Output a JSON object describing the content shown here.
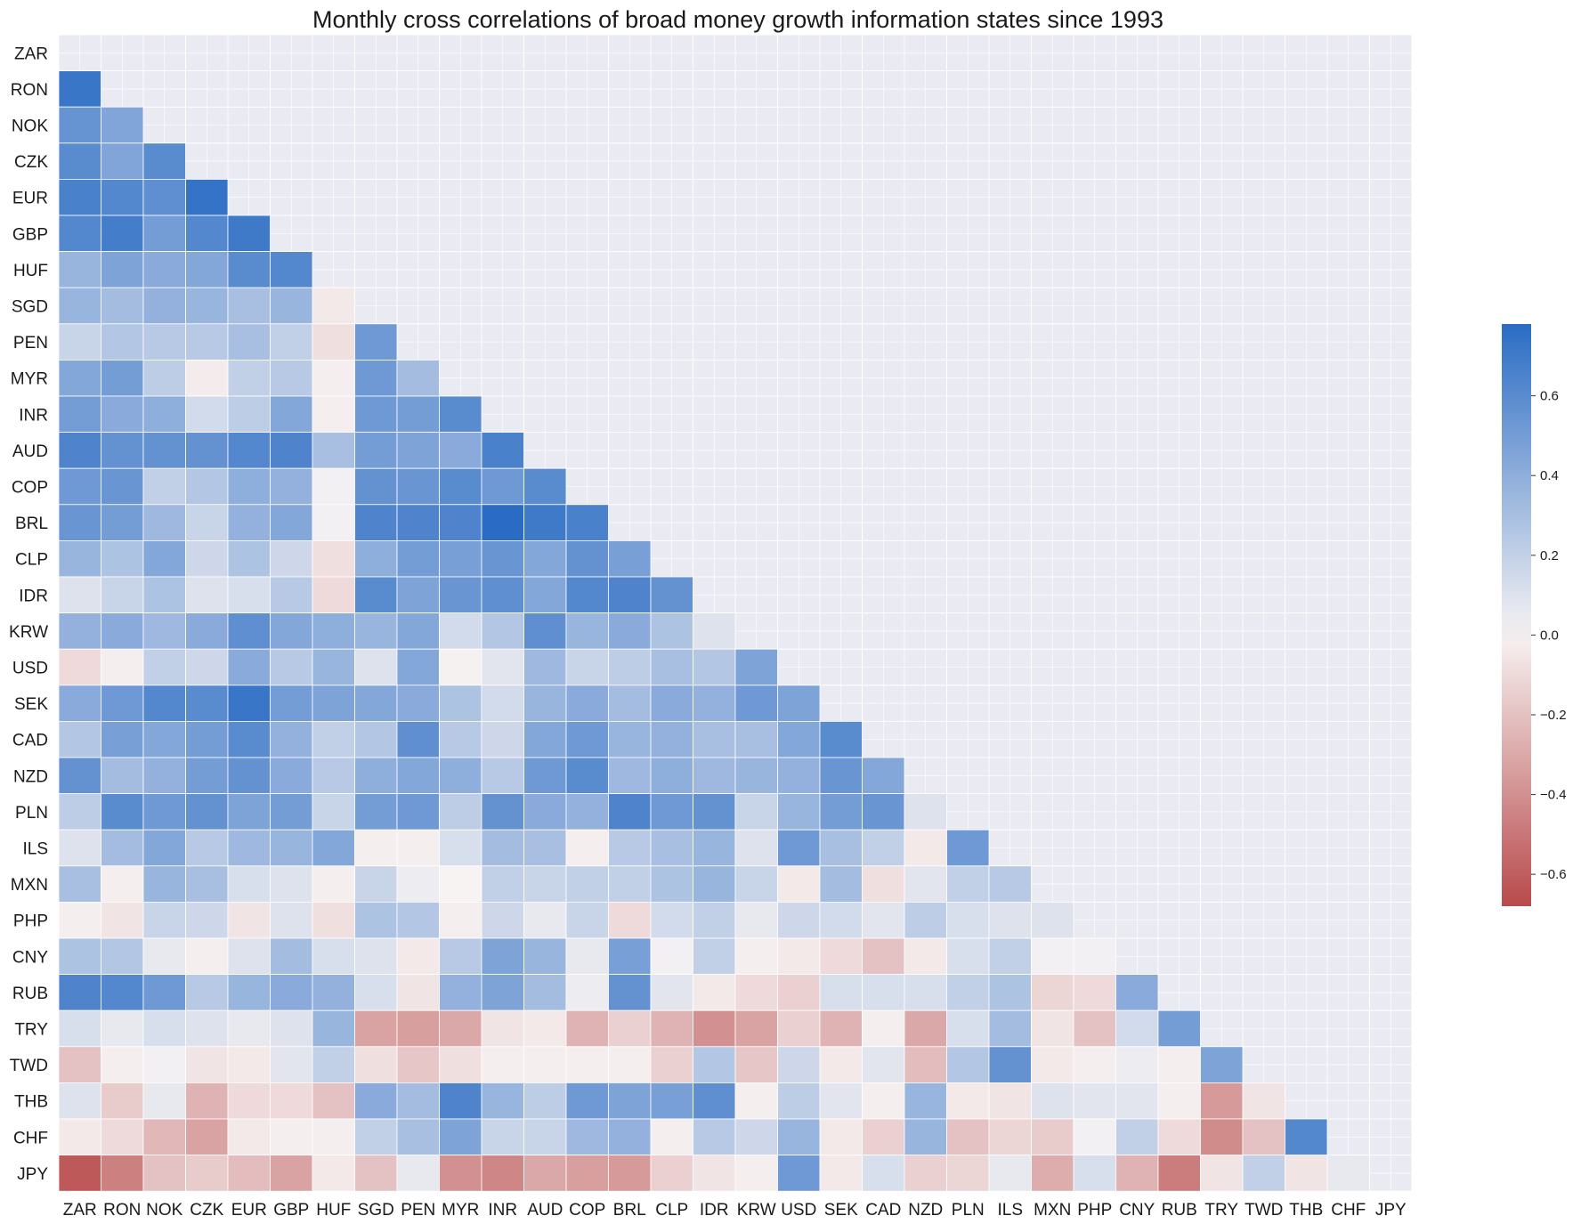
{
  "chart_data": {
    "type": "heatmap",
    "title": "Monthly cross correlations of broad money growth information states since 1993",
    "labels": [
      "ZAR",
      "RON",
      "NOK",
      "CZK",
      "EUR",
      "GBP",
      "HUF",
      "SGD",
      "PEN",
      "MYR",
      "INR",
      "AUD",
      "COP",
      "BRL",
      "CLP",
      "IDR",
      "KRW",
      "USD",
      "SEK",
      "CAD",
      "NZD",
      "PLN",
      "ILS",
      "MXN",
      "PHP",
      "CNY",
      "RUB",
      "TRY",
      "TWD",
      "THB",
      "CHF",
      "JPY"
    ],
    "mask": "upper triangle incl. diagonal",
    "matrix": [
      [],
      [
        0.72
      ],
      [
        0.55,
        0.45
      ],
      [
        0.6,
        0.45,
        0.6
      ],
      [
        0.66,
        0.62,
        0.58,
        0.74
      ],
      [
        0.62,
        0.68,
        0.5,
        0.62,
        0.7
      ],
      [
        0.36,
        0.46,
        0.42,
        0.44,
        0.6,
        0.62
      ],
      [
        0.36,
        0.32,
        0.38,
        0.36,
        0.3,
        0.36,
        -0.04
      ],
      [
        0.18,
        0.26,
        0.24,
        0.24,
        0.3,
        0.2,
        -0.08,
        0.52
      ],
      [
        0.44,
        0.5,
        0.22,
        -0.03,
        0.2,
        0.24,
        -0.02,
        0.52,
        0.32
      ],
      [
        0.5,
        0.42,
        0.4,
        0.14,
        0.22,
        0.44,
        -0.02,
        0.52,
        0.5,
        0.6
      ],
      [
        0.64,
        0.56,
        0.56,
        0.56,
        0.62,
        0.64,
        0.3,
        0.5,
        0.46,
        0.42,
        0.66
      ],
      [
        0.52,
        0.54,
        0.2,
        0.26,
        0.4,
        0.38,
        0.02,
        0.56,
        0.54,
        0.6,
        0.52,
        0.6
      ],
      [
        0.54,
        0.5,
        0.34,
        0.18,
        0.38,
        0.44,
        0.02,
        0.64,
        0.64,
        0.64,
        0.78,
        0.7,
        0.66
      ],
      [
        0.36,
        0.28,
        0.44,
        0.16,
        0.28,
        0.16,
        -0.08,
        0.4,
        0.5,
        0.48,
        0.54,
        0.44,
        0.56,
        0.48
      ],
      [
        0.1,
        0.18,
        0.28,
        0.1,
        0.12,
        0.24,
        -0.1,
        0.6,
        0.46,
        0.54,
        0.58,
        0.44,
        0.62,
        0.64,
        0.56
      ],
      [
        0.38,
        0.42,
        0.34,
        0.42,
        0.58,
        0.44,
        0.4,
        0.36,
        0.44,
        0.14,
        0.26,
        0.58,
        0.36,
        0.42,
        0.28,
        0.1
      ],
      [
        -0.1,
        -0.02,
        0.2,
        0.16,
        0.42,
        0.24,
        0.36,
        0.1,
        0.44,
        -0.01,
        0.08,
        0.34,
        0.18,
        0.22,
        0.3,
        0.26,
        0.46
      ],
      [
        0.42,
        0.52,
        0.62,
        0.6,
        0.72,
        0.5,
        0.46,
        0.44,
        0.42,
        0.28,
        0.14,
        0.36,
        0.42,
        0.32,
        0.42,
        0.38,
        0.52,
        0.46
      ],
      [
        0.26,
        0.48,
        0.44,
        0.5,
        0.6,
        0.38,
        0.2,
        0.26,
        0.58,
        0.24,
        0.16,
        0.44,
        0.52,
        0.36,
        0.38,
        0.3,
        0.3,
        0.44,
        0.6
      ],
      [
        0.56,
        0.32,
        0.38,
        0.5,
        0.56,
        0.42,
        0.24,
        0.4,
        0.44,
        0.4,
        0.24,
        0.52,
        0.6,
        0.34,
        0.4,
        0.34,
        0.36,
        0.38,
        0.54,
        0.44
      ],
      [
        0.22,
        0.6,
        0.52,
        0.56,
        0.46,
        0.5,
        0.18,
        0.5,
        0.52,
        0.22,
        0.56,
        0.42,
        0.38,
        0.64,
        0.52,
        0.56,
        0.18,
        0.36,
        0.5,
        0.54,
        0.1
      ],
      [
        0.1,
        0.32,
        0.44,
        0.24,
        0.34,
        0.36,
        0.44,
        -0.02,
        -0.02,
        0.12,
        0.32,
        0.3,
        -0.02,
        0.24,
        0.3,
        0.36,
        0.1,
        0.52,
        0.3,
        0.2,
        -0.04,
        0.52
      ],
      [
        0.3,
        -0.02,
        0.36,
        0.3,
        0.12,
        0.1,
        -0.02,
        0.18,
        0.04,
        0.0,
        0.2,
        0.18,
        0.2,
        0.2,
        0.28,
        0.36,
        0.18,
        -0.04,
        0.32,
        -0.08,
        0.08,
        0.2,
        0.24
      ],
      [
        -0.02,
        -0.06,
        0.18,
        0.16,
        -0.06,
        0.1,
        -0.08,
        0.28,
        0.26,
        -0.02,
        0.16,
        0.06,
        0.18,
        -0.1,
        0.14,
        0.2,
        0.06,
        0.16,
        0.14,
        0.08,
        0.22,
        0.12,
        0.1,
        0.1
      ],
      [
        0.28,
        0.26,
        0.06,
        -0.02,
        0.1,
        0.32,
        0.12,
        0.1,
        -0.04,
        0.24,
        0.46,
        0.36,
        0.06,
        0.48,
        0.02,
        0.2,
        -0.02,
        -0.04,
        -0.1,
        -0.2,
        -0.04,
        0.12,
        0.2,
        0.02,
        0.02
      ],
      [
        0.64,
        0.62,
        0.52,
        0.24,
        0.36,
        0.42,
        0.38,
        0.12,
        -0.06,
        0.38,
        0.46,
        0.32,
        0.04,
        0.56,
        0.08,
        -0.04,
        -0.1,
        -0.14,
        0.12,
        0.12,
        0.12,
        0.2,
        0.28,
        -0.12,
        -0.1,
        0.42
      ],
      [
        0.12,
        0.06,
        0.12,
        0.1,
        0.06,
        0.1,
        0.36,
        -0.32,
        -0.34,
        -0.3,
        -0.06,
        -0.04,
        -0.26,
        -0.14,
        -0.26,
        -0.4,
        -0.32,
        -0.14,
        -0.26,
        -0.02,
        -0.3,
        0.12,
        0.32,
        -0.06,
        -0.2,
        0.14,
        0.5
      ],
      [
        -0.2,
        -0.02,
        0.02,
        -0.06,
        -0.04,
        0.08,
        0.2,
        -0.08,
        -0.18,
        -0.08,
        -0.02,
        -0.02,
        -0.02,
        -0.02,
        -0.14,
        0.26,
        -0.18,
        0.16,
        -0.04,
        0.08,
        -0.22,
        0.26,
        0.56,
        -0.04,
        -0.02,
        0.04,
        -0.02,
        0.46
      ],
      [
        0.1,
        -0.16,
        0.06,
        -0.26,
        -0.1,
        -0.1,
        -0.2,
        0.42,
        0.32,
        0.64,
        0.36,
        0.22,
        0.52,
        0.46,
        0.48,
        0.58,
        -0.02,
        0.22,
        0.08,
        -0.02,
        0.36,
        -0.04,
        -0.06,
        0.1,
        0.08,
        0.08,
        -0.02,
        -0.36,
        -0.06
      ],
      [
        -0.04,
        -0.1,
        -0.24,
        -0.32,
        -0.04,
        -0.02,
        -0.02,
        0.2,
        0.3,
        0.46,
        0.18,
        0.18,
        0.34,
        0.38,
        -0.02,
        0.24,
        0.16,
        0.36,
        -0.04,
        -0.14,
        0.36,
        -0.2,
        -0.12,
        -0.16,
        0.02,
        0.2,
        -0.1,
        -0.42,
        -0.2,
        0.62
      ],
      [
        -0.62,
        -0.46,
        -0.2,
        -0.16,
        -0.22,
        -0.32,
        -0.04,
        -0.2,
        0.06,
        -0.4,
        -0.44,
        -0.3,
        -0.34,
        -0.36,
        -0.14,
        -0.06,
        -0.02,
        0.52,
        -0.04,
        0.12,
        -0.14,
        -0.12,
        0.06,
        -0.28,
        0.12,
        -0.26,
        -0.48,
        -0.06,
        0.2,
        -0.06,
        0.06
      ]
    ],
    "colorbar": {
      "min": -0.68,
      "max": 0.78,
      "ticks": [
        0.6,
        0.4,
        0.2,
        0.0,
        -0.2,
        -0.4,
        -0.6
      ],
      "tick_labels": [
        "0.6",
        "0.4",
        "0.2",
        "0.0",
        "−0.2",
        "−0.4",
        "−0.6"
      ]
    },
    "colors": {
      "negative": "#b84a4b",
      "zero": "#f7f3f3",
      "positive": "#2a6cc4",
      "masked_bg": "#eaeaf2",
      "grid": "#ffffff"
    }
  }
}
